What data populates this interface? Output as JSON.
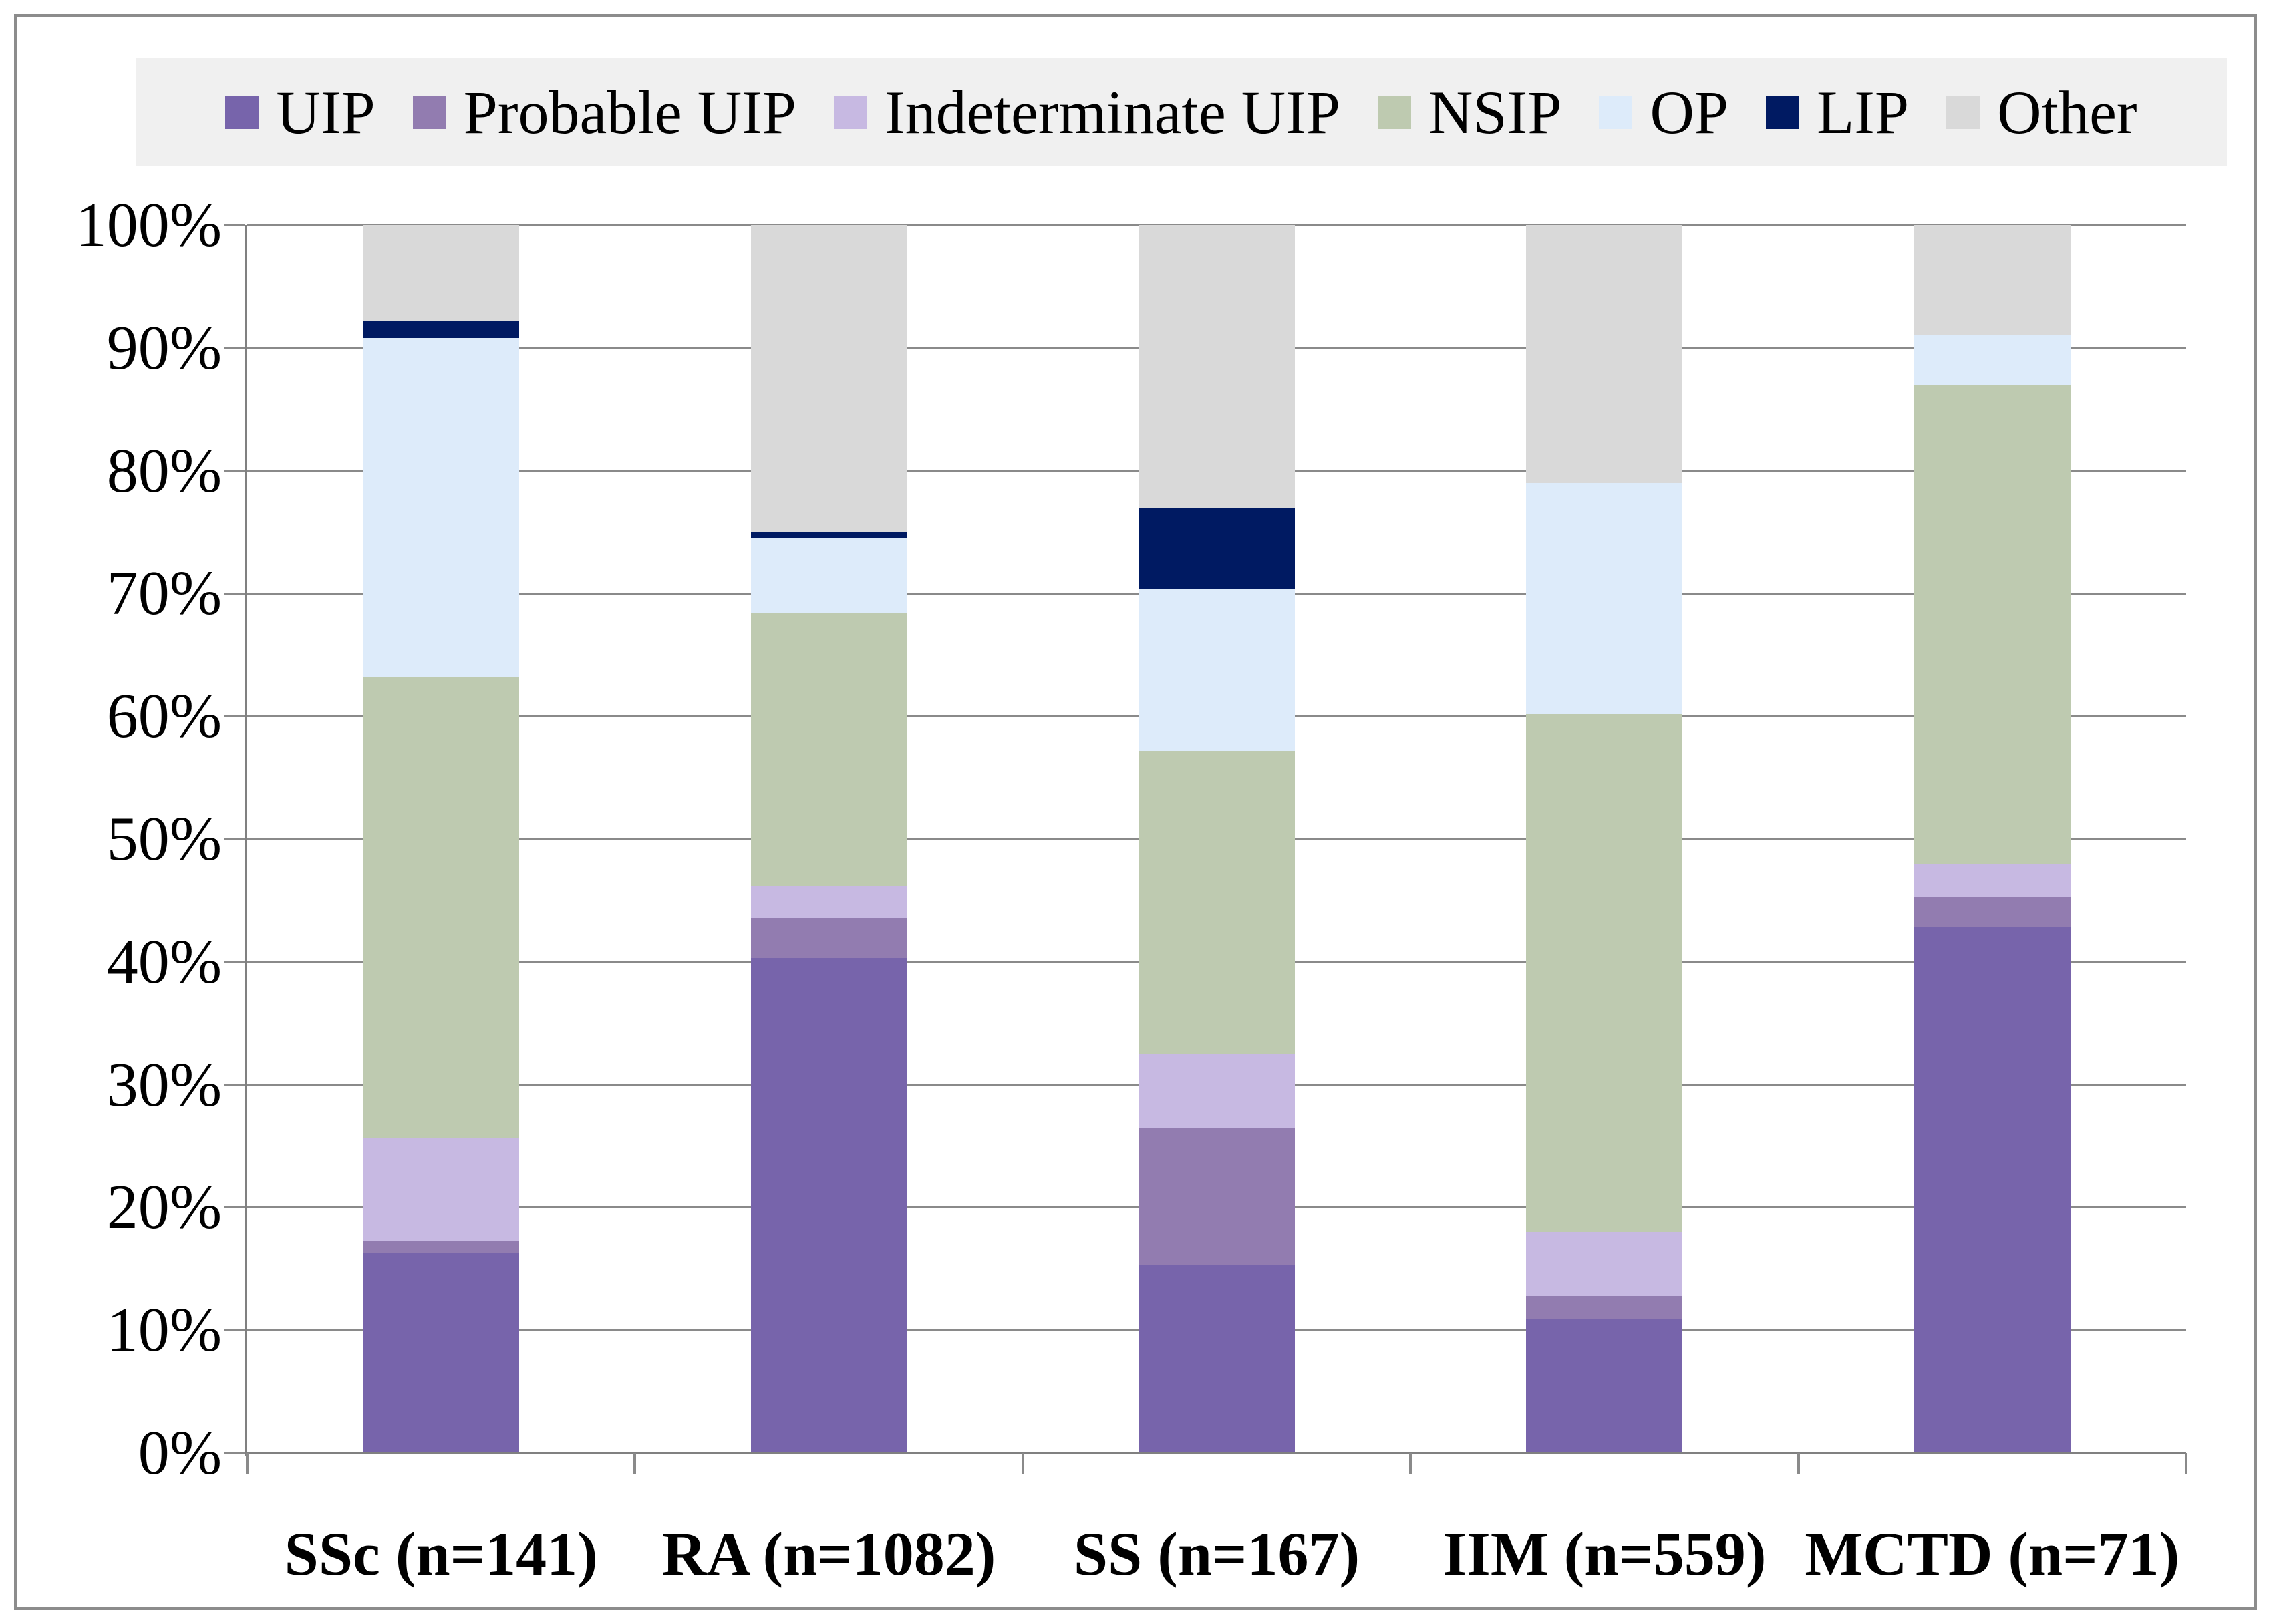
{
  "figure": {
    "background": "#FFFFFF",
    "frame_color": "#8C8C8C",
    "legend_background": "#F0F0F0",
    "gridline_color": "#8A8A8A",
    "axis_color": "#808080"
  },
  "legend": {
    "items": [
      {
        "label": "UIP",
        "color": "#7764AB"
      },
      {
        "label": "Probable UIP",
        "color": "#927CB0"
      },
      {
        "label": "Indeterminate UIP",
        "color": "#C7B9E2"
      },
      {
        "label": "NSIP",
        "color": "#BECAB0"
      },
      {
        "label": "OP",
        "color": "#DDEBFA"
      },
      {
        "label": "LIP",
        "color": "#001A62"
      },
      {
        "label": "Other",
        "color": "#D9D9D9"
      }
    ]
  },
  "chart_data": {
    "type": "bar",
    "stacked": true,
    "units": "percent",
    "title": "",
    "xlabel": "",
    "ylabel": "",
    "grid": true,
    "legend_position": "top",
    "categories": [
      "SSc (n=141)",
      "RA (n=1082)",
      "SS (n=167)",
      "IIM (n=559)",
      "MCTD (n=71)"
    ],
    "series": [
      {
        "name": "UIP",
        "color": "#7764AB",
        "values": [
          16.3,
          40.3,
          15.3,
          10.9,
          42.8
        ]
      },
      {
        "name": "Probable UIP",
        "color": "#927CB0",
        "values": [
          1.0,
          3.3,
          11.2,
          1.9,
          2.5
        ]
      },
      {
        "name": "Indeterminate UIP",
        "color": "#C7B9E2",
        "values": [
          8.4,
          2.6,
          6.0,
          5.2,
          2.7
        ]
      },
      {
        "name": "NSIP",
        "color": "#BECAB0",
        "values": [
          37.5,
          22.2,
          24.7,
          42.2,
          39.0
        ]
      },
      {
        "name": "OP",
        "color": "#DDEBFA",
        "values": [
          27.6,
          6.1,
          13.2,
          18.8,
          4.0
        ]
      },
      {
        "name": "LIP",
        "color": "#001A62",
        "values": [
          1.4,
          0.5,
          6.6,
          0,
          0
        ]
      },
      {
        "name": "Other",
        "color": "#D9D9D9",
        "values": [
          7.8,
          25.0,
          23.0,
          21.0,
          9.0
        ]
      }
    ],
    "y_axis": {
      "min": 0,
      "max": 100,
      "tick_step": 10,
      "tick_labels": [
        "0%",
        "10%",
        "20%",
        "30%",
        "40%",
        "50%",
        "60%",
        "70%",
        "80%",
        "90%",
        "100%"
      ]
    }
  }
}
